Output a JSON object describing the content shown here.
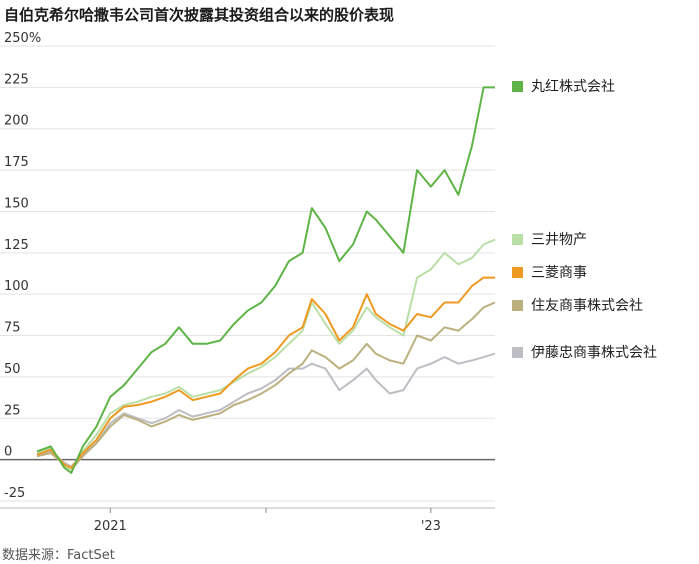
{
  "title": "自伯克希尔哈撒韦公司首次披露其投资组合以来的股价表现",
  "source": "数据来源：FactSet",
  "chart_data": {
    "type": "line",
    "title": "自伯克希尔哈撒韦公司首次披露其投资组合以来的股价表现",
    "xlabel": "",
    "ylabel": "",
    "ylim": [
      -25,
      250
    ],
    "y_ticks": [
      "250%",
      "225",
      "200",
      "175",
      "150",
      "125",
      "100",
      "75",
      "50",
      "25",
      "0",
      "-25"
    ],
    "y_tick_values": [
      250,
      225,
      200,
      175,
      150,
      125,
      100,
      75,
      50,
      25,
      0,
      -25
    ],
    "x_ticks": [
      {
        "label": "2021",
        "t": 0.16
      },
      {
        "label": "",
        "t": 0.5
      },
      {
        "label": "'23",
        "t": 0.86
      }
    ],
    "grid": true,
    "legend_placement": "right",
    "x": [
      0,
      0.03,
      0.06,
      0.075,
      0.1,
      0.13,
      0.16,
      0.19,
      0.22,
      0.25,
      0.28,
      0.31,
      0.34,
      0.37,
      0.4,
      0.43,
      0.46,
      0.49,
      0.52,
      0.55,
      0.58,
      0.6,
      0.63,
      0.66,
      0.69,
      0.72,
      0.74,
      0.77,
      0.8,
      0.83,
      0.86,
      0.89,
      0.92,
      0.95,
      0.975,
      1.0
    ],
    "series": [
      {
        "name": "丸红株式会社",
        "color": "#5eb447",
        "values": [
          5,
          8,
          -5,
          -8,
          8,
          20,
          38,
          45,
          55,
          65,
          70,
          80,
          70,
          70,
          72,
          82,
          90,
          95,
          105,
          120,
          125,
          152,
          140,
          120,
          130,
          150,
          145,
          135,
          125,
          175,
          165,
          175,
          160,
          190,
          225,
          225
        ]
      },
      {
        "name": "三井物产",
        "color": "#b9dfa7",
        "values": [
          4,
          7,
          -4,
          -6,
          5,
          15,
          28,
          33,
          35,
          38,
          40,
          44,
          38,
          40,
          42,
          47,
          52,
          56,
          62,
          70,
          78,
          95,
          82,
          70,
          78,
          92,
          86,
          80,
          75,
          110,
          115,
          125,
          118,
          122,
          130,
          133
        ]
      },
      {
        "name": "三菱商事",
        "color": "#ee9a21",
        "values": [
          3,
          6,
          -3,
          -5,
          4,
          12,
          25,
          32,
          33,
          35,
          38,
          42,
          36,
          38,
          40,
          48,
          55,
          58,
          65,
          75,
          80,
          97,
          88,
          72,
          80,
          100,
          88,
          82,
          78,
          88,
          86,
          95,
          95,
          105,
          110,
          110
        ]
      },
      {
        "name": "住友商事株式会社",
        "color": "#bcb07f",
        "values": [
          2,
          4,
          -3,
          -6,
          2,
          10,
          20,
          27,
          24,
          20,
          23,
          27,
          24,
          26,
          28,
          33,
          36,
          40,
          45,
          52,
          58,
          66,
          62,
          55,
          60,
          70,
          64,
          60,
          58,
          75,
          72,
          80,
          78,
          85,
          92,
          95
        ]
      },
      {
        "name": "伊藤忠商事株式会社",
        "color": "#bdbdc4",
        "values": [
          3,
          5,
          -2,
          -4,
          3,
          10,
          22,
          28,
          25,
          22,
          25,
          30,
          26,
          28,
          30,
          35,
          40,
          43,
          48,
          55,
          55,
          58,
          55,
          42,
          48,
          55,
          48,
          40,
          42,
          55,
          58,
          62,
          58,
          60,
          62,
          64
        ]
      }
    ]
  }
}
